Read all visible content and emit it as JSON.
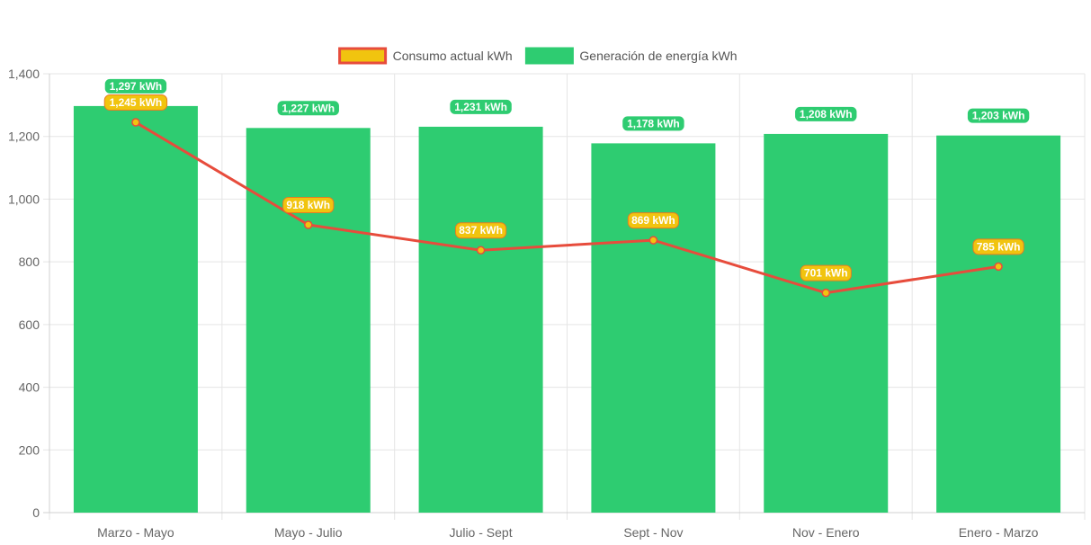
{
  "chart_data": {
    "type": "bar",
    "categories": [
      "Marzo - Mayo",
      "Mayo - Julio",
      "Julio - Sept",
      "Sept - Nov",
      "Nov - Enero",
      "Enero - Marzo"
    ],
    "series": [
      {
        "name": "Generación de energía kWh",
        "type": "bar",
        "values": [
          1297,
          1227,
          1231,
          1178,
          1208,
          1203
        ],
        "labels": [
          "1,297 kWh",
          "1,227 kWh",
          "1,231 kWh",
          "1,178 kWh",
          "1,208 kWh",
          "1,203 kWh"
        ],
        "color": "#2ecc71"
      },
      {
        "name": "Consumo actual kWh",
        "type": "line",
        "values": [
          1245,
          918,
          837,
          869,
          701,
          785
        ],
        "labels": [
          "1,245 kWh",
          "918 kWh",
          "837 kWh",
          "869 kWh",
          "701 kWh",
          "785 kWh"
        ],
        "color": "#e74c3c",
        "point_color": "#f1c40f"
      }
    ],
    "ylim": [
      0,
      1400
    ],
    "yticks": [
      0,
      200,
      400,
      600,
      800,
      1000,
      1200,
      1400
    ],
    "ytick_labels": [
      "0",
      "200",
      "400",
      "600",
      "800",
      "1,000",
      "1,200",
      "1,400"
    ],
    "grid": true,
    "legend_position": "top-center",
    "legend": [
      {
        "label": "Consumo actual kWh",
        "fill": "#f1c40f",
        "stroke": "#e74c3c"
      },
      {
        "label": "Generación de energía kWh",
        "fill": "#2ecc71",
        "stroke": "#2ecc71"
      }
    ]
  }
}
